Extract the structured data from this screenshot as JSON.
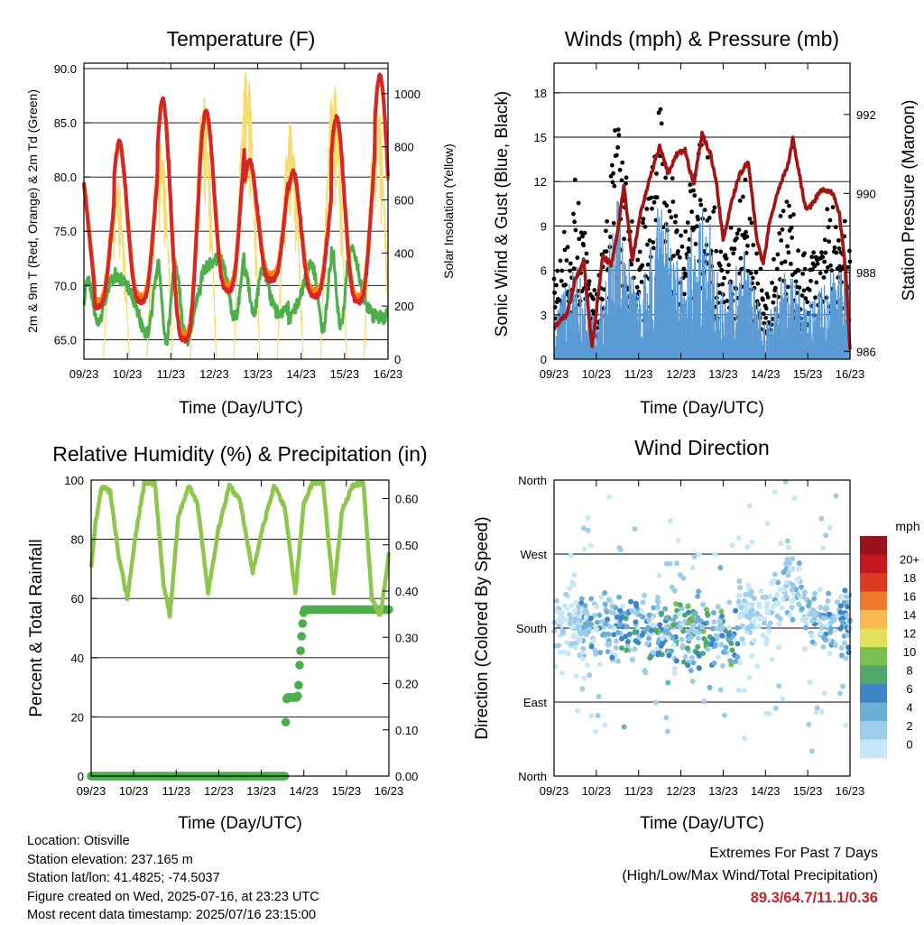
{
  "colors": {
    "temp_2m": "#d62728",
    "temp_9m": "#ff7f0e",
    "dewpoint": "#4daf4a",
    "solar": "#f7dc6f",
    "wind": "#5b9bd5",
    "gust": "#000000",
    "pressure": "#a31515",
    "rh": "#8dc64b",
    "precip": "#4aae4a",
    "extremes_text": "#c0272d"
  },
  "chart_data": [
    {
      "id": "temperature",
      "type": "line",
      "title": "Temperature (F)",
      "xlabel": "Time (Day/UTC)",
      "ylabel": "2m & 9m T (Red, Orange) & 2m Td (Green)",
      "ylabel_right": "Solar Insolation (Yellow)",
      "x_ticks": [
        "09/23",
        "10/23",
        "11/23",
        "12/23",
        "13/23",
        "14/23",
        "15/23",
        "16/23"
      ],
      "xlim": [
        0,
        7
      ],
      "ylim": [
        63.2,
        90.5
      ],
      "y_ticks": [
        "65.0",
        "70.0",
        "75.0",
        "80.0",
        "85.0",
        "90.0"
      ],
      "ylim_right": [
        0,
        1115
      ],
      "y_ticks_right": [
        "0",
        "200",
        "400",
        "600",
        "800",
        "1000"
      ],
      "grid": true,
      "daily_extremes": [
        {
          "day": 0,
          "min": 68.0,
          "max": 80.0,
          "td_min": 66.5,
          "td_max": 70.5,
          "solar_max": 700
        },
        {
          "day": 1,
          "min": 68.5,
          "max": 83.2,
          "td_min": 65.5,
          "td_max": 71.0,
          "solar_max": 850
        },
        {
          "day": 2,
          "min": 65.0,
          "max": 87.2,
          "td_min": 65.0,
          "td_max": 72.0,
          "solar_max": 1000
        },
        {
          "day": 3,
          "min": 69.5,
          "max": 86.0,
          "td_min": 67.0,
          "td_max": 72.5,
          "solar_max": 1110
        },
        {
          "day": 4,
          "min": 70.5,
          "max": 81.5,
          "td_min": 67.5,
          "td_max": 71.5,
          "solar_max": 900
        },
        {
          "day": 5,
          "min": 69.0,
          "max": 80.5,
          "td_min": 66.0,
          "td_max": 72.0,
          "solar_max": 1050
        },
        {
          "day": 6,
          "min": 68.5,
          "max": 85.5,
          "td_min": 66.5,
          "td_max": 73.5,
          "solar_max": 1000
        },
        {
          "day": 7,
          "min": 69.0,
          "max": 89.3,
          "td_min": 67.0,
          "td_max": 73.0,
          "solar_max": 1100
        }
      ]
    },
    {
      "id": "winds",
      "type": "scatter",
      "title": "Winds (mph) & Pressure (mb)",
      "xlabel": "Time (Day/UTC)",
      "ylabel": "Sonic Wind & Gust (Blue, Black)",
      "ylabel_right": "Station Pressure (Maroon)",
      "x_ticks": [
        "09/23",
        "10/23",
        "11/23",
        "12/23",
        "13/23",
        "14/23",
        "15/23",
        "16/23"
      ],
      "xlim": [
        0,
        7
      ],
      "ylim": [
        0,
        20
      ],
      "y_ticks": [
        "0",
        "3",
        "6",
        "9",
        "12",
        "15",
        "18"
      ],
      "ylim_right": [
        985.8,
        993.3
      ],
      "y_ticks_right": [
        "986",
        "988",
        "990",
        "992"
      ],
      "grid": true,
      "pressure_points": [
        {
          "x": 0.0,
          "y": 986.6
        },
        {
          "x": 0.15,
          "y": 986.8
        },
        {
          "x": 0.3,
          "y": 986.9
        },
        {
          "x": 0.5,
          "y": 987.8
        },
        {
          "x": 0.7,
          "y": 988.3
        },
        {
          "x": 0.9,
          "y": 986.1
        },
        {
          "x": 1.0,
          "y": 987.0
        },
        {
          "x": 1.15,
          "y": 988.4
        },
        {
          "x": 1.35,
          "y": 988.2
        },
        {
          "x": 1.5,
          "y": 989.0
        },
        {
          "x": 1.65,
          "y": 990.2
        },
        {
          "x": 1.85,
          "y": 988.3
        },
        {
          "x": 2.05,
          "y": 989.5
        },
        {
          "x": 2.3,
          "y": 990.5
        },
        {
          "x": 2.5,
          "y": 991.2
        },
        {
          "x": 2.7,
          "y": 990.5
        },
        {
          "x": 2.9,
          "y": 991.0
        },
        {
          "x": 3.1,
          "y": 991.1
        },
        {
          "x": 3.3,
          "y": 990.2
        },
        {
          "x": 3.5,
          "y": 991.5
        },
        {
          "x": 3.7,
          "y": 991.0
        },
        {
          "x": 3.85,
          "y": 990.2
        },
        {
          "x": 4.0,
          "y": 988.8
        },
        {
          "x": 4.2,
          "y": 989.8
        },
        {
          "x": 4.4,
          "y": 990.5
        },
        {
          "x": 4.6,
          "y": 990.8
        },
        {
          "x": 4.8,
          "y": 988.8
        },
        {
          "x": 4.95,
          "y": 988.2
        },
        {
          "x": 5.1,
          "y": 989.3
        },
        {
          "x": 5.25,
          "y": 989.9
        },
        {
          "x": 5.35,
          "y": 990.2
        },
        {
          "x": 5.55,
          "y": 990.8
        },
        {
          "x": 5.65,
          "y": 991.4
        },
        {
          "x": 5.8,
          "y": 990.5
        },
        {
          "x": 5.95,
          "y": 989.6
        },
        {
          "x": 6.1,
          "y": 989.7
        },
        {
          "x": 6.25,
          "y": 990.0
        },
        {
          "x": 6.4,
          "y": 990.1
        },
        {
          "x": 6.6,
          "y": 990.0
        },
        {
          "x": 6.75,
          "y": 989.5
        },
        {
          "x": 6.9,
          "y": 988.0
        },
        {
          "x": 7.0,
          "y": 986.0
        }
      ],
      "wind_profile": [
        {
          "x": 0.0,
          "wind": 2.0,
          "gust": 4.0
        },
        {
          "x": 0.5,
          "wind": 4.5,
          "gust": 9.0
        },
        {
          "x": 1.0,
          "wind": 1.5,
          "gust": 3.0
        },
        {
          "x": 1.5,
          "wind": 7.5,
          "gust": 12.5
        },
        {
          "x": 2.0,
          "wind": 3.0,
          "gust": 5.0
        },
        {
          "x": 2.5,
          "wind": 7.5,
          "gust": 13.0
        },
        {
          "x": 3.0,
          "wind": 4.0,
          "gust": 6.0
        },
        {
          "x": 3.5,
          "wind": 8.0,
          "gust": 12.0
        },
        {
          "x": 4.0,
          "wind": 3.0,
          "gust": 5.0
        },
        {
          "x": 4.5,
          "wind": 5.0,
          "gust": 9.0
        },
        {
          "x": 5.0,
          "wind": 1.5,
          "gust": 3.0
        },
        {
          "x": 5.5,
          "wind": 4.5,
          "gust": 8.5
        },
        {
          "x": 6.0,
          "wind": 2.5,
          "gust": 4.5
        },
        {
          "x": 6.5,
          "wind": 4.0,
          "gust": 7.5
        },
        {
          "x": 7.0,
          "wind": 4.0,
          "gust": 7.0
        }
      ]
    },
    {
      "id": "humidity",
      "type": "line",
      "title": "Relative Humidity (%) & Precipitation (in)",
      "xlabel": "Time (Day/UTC)",
      "ylabel": "Percent & Total Rainfall",
      "x_ticks": [
        "09/23",
        "10/23",
        "11/23",
        "12/23",
        "13/23",
        "14/23",
        "15/23",
        "16/23"
      ],
      "xlim": [
        0,
        7
      ],
      "ylim": [
        0,
        100
      ],
      "y_ticks": [
        "0",
        "20",
        "40",
        "60",
        "80",
        "100"
      ],
      "ylim_right": [
        0,
        0.64
      ],
      "y_ticks_right": [
        "0.00",
        "0.10",
        "0.20",
        "0.30",
        "0.40",
        "0.50",
        "0.60"
      ],
      "grid": true,
      "rh_points": [
        {
          "x": 0.0,
          "y": 70
        },
        {
          "x": 0.1,
          "y": 85
        },
        {
          "x": 0.25,
          "y": 98
        },
        {
          "x": 0.45,
          "y": 96
        },
        {
          "x": 0.65,
          "y": 74
        },
        {
          "x": 0.85,
          "y": 60
        },
        {
          "x": 1.05,
          "y": 82
        },
        {
          "x": 1.25,
          "y": 99
        },
        {
          "x": 1.5,
          "y": 99
        },
        {
          "x": 1.7,
          "y": 65
        },
        {
          "x": 1.85,
          "y": 54
        },
        {
          "x": 2.05,
          "y": 88
        },
        {
          "x": 2.3,
          "y": 98
        },
        {
          "x": 2.5,
          "y": 92
        },
        {
          "x": 2.75,
          "y": 62
        },
        {
          "x": 3.0,
          "y": 84
        },
        {
          "x": 3.25,
          "y": 98
        },
        {
          "x": 3.5,
          "y": 93
        },
        {
          "x": 3.8,
          "y": 69
        },
        {
          "x": 4.0,
          "y": 82
        },
        {
          "x": 4.3,
          "y": 98
        },
        {
          "x": 4.55,
          "y": 91
        },
        {
          "x": 4.8,
          "y": 62
        },
        {
          "x": 5.0,
          "y": 92
        },
        {
          "x": 5.2,
          "y": 99
        },
        {
          "x": 5.45,
          "y": 99
        },
        {
          "x": 5.7,
          "y": 62
        },
        {
          "x": 5.9,
          "y": 90
        },
        {
          "x": 6.15,
          "y": 98
        },
        {
          "x": 6.4,
          "y": 99
        },
        {
          "x": 6.6,
          "y": 60
        },
        {
          "x": 6.8,
          "y": 54
        },
        {
          "x": 7.0,
          "y": 75
        }
      ],
      "precip_points": [
        {
          "x": 0.0,
          "y": 0.0
        },
        {
          "x": 4.55,
          "y": 0.0
        },
        {
          "x": 4.58,
          "y": 0.15
        },
        {
          "x": 4.6,
          "y": 0.17
        },
        {
          "x": 4.85,
          "y": 0.17
        },
        {
          "x": 4.88,
          "y": 0.2
        },
        {
          "x": 4.9,
          "y": 0.24
        },
        {
          "x": 4.93,
          "y": 0.28
        },
        {
          "x": 4.96,
          "y": 0.32
        },
        {
          "x": 5.0,
          "y": 0.36
        },
        {
          "x": 7.0,
          "y": 0.36
        }
      ]
    },
    {
      "id": "wind_direction",
      "type": "scatter",
      "title": "Wind Direction",
      "xlabel": "Time (Day/UTC)",
      "ylabel": "Direction (Colored By Speed)",
      "x_ticks": [
        "09/23",
        "10/23",
        "11/23",
        "12/23",
        "13/23",
        "14/23",
        "15/23",
        "16/23"
      ],
      "xlim": [
        0,
        7
      ],
      "ylim": [
        0,
        360
      ],
      "y_ticks": [
        "North",
        "East",
        "South",
        "West",
        "North"
      ],
      "grid": true,
      "colorbar_title": "mph",
      "colorbar_labels": [
        "0",
        "2",
        "4",
        "6",
        "8",
        "10",
        "12",
        "14",
        "16",
        "18",
        "20+"
      ],
      "colorbar_colors": [
        "#c6e7f7",
        "#9ecde9",
        "#6baed6",
        "#3e85c6",
        "#4ea86c",
        "#79bf52",
        "#e3e05a",
        "#f8ba4e",
        "#ef7a2d",
        "#dc3a22",
        "#c4161c",
        "#99131b"
      ],
      "direction_clusters": [
        {
          "x": 0.3,
          "dir": 185,
          "speed": 3
        },
        {
          "x": 0.9,
          "dir": 180,
          "speed": 5
        },
        {
          "x": 1.9,
          "dir": 180,
          "speed": 7
        },
        {
          "x": 2.8,
          "dir": 175,
          "speed": 8
        },
        {
          "x": 3.8,
          "dir": 170,
          "speed": 8
        },
        {
          "x": 4.9,
          "dir": 195,
          "speed": 3
        },
        {
          "x": 5.4,
          "dir": 230,
          "speed": 4
        },
        {
          "x": 6.3,
          "dir": 190,
          "speed": 5
        },
        {
          "x": 6.8,
          "dir": 185,
          "speed": 6
        }
      ]
    }
  ],
  "info": {
    "location": "Location: Otisville",
    "elevation": "Station elevation: 237.165 m",
    "latlon": "Station lat/lon: 41.4825; -74.5037",
    "created": "Figure created on Wed, 2025-07-16, at 23:23 UTC",
    "latest": "Most recent data timestamp: 2025/07/16 23:15:00"
  },
  "extremes": {
    "heading": "Extremes For Past 7 Days",
    "subheading": "(High/Low/Max Wind/Total Precipitation)",
    "values": "89.3/64.7/11.1/0.36"
  }
}
